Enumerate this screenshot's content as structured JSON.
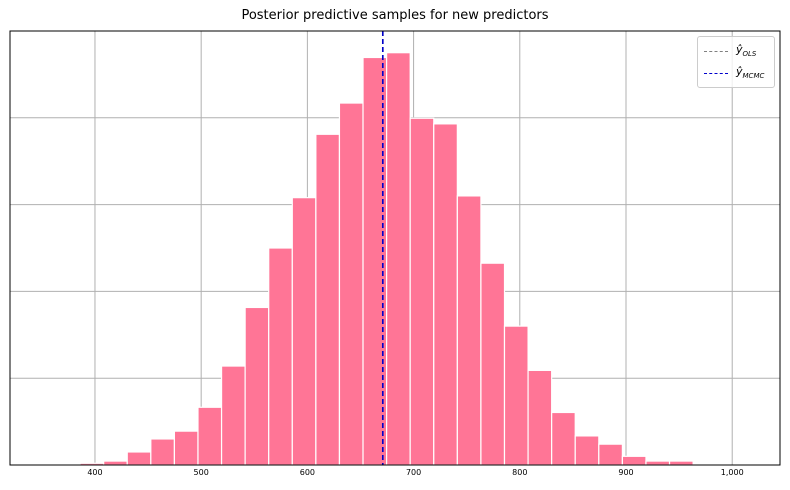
{
  "chart_data": {
    "type": "bar",
    "title": "Posterior predictive samples for new predictors",
    "xlabel": "",
    "ylabel": "",
    "xlim": [
      320,
      1045
    ],
    "ylim": [
      0,
      1
    ],
    "x_ticks": [
      400,
      500,
      600,
      700,
      800,
      900,
      1000
    ],
    "x_tick_labels": [
      "400",
      "500",
      "600",
      "700",
      "800",
      "900",
      "1,000"
    ],
    "y_tick_labels_shown": false,
    "grid": true,
    "legend_placement": "top-right",
    "bin_width": 22.2,
    "bin_edges_start": 386,
    "bins": [
      {
        "left": 386.0,
        "right": 408.2,
        "height": 0.004
      },
      {
        "left": 408.2,
        "right": 430.4,
        "height": 0.009
      },
      {
        "left": 430.4,
        "right": 452.6,
        "height": 0.03
      },
      {
        "left": 452.6,
        "right": 474.8,
        "height": 0.06
      },
      {
        "left": 474.8,
        "right": 497.0,
        "height": 0.078
      },
      {
        "left": 497.0,
        "right": 519.2,
        "height": 0.133
      },
      {
        "left": 519.2,
        "right": 541.4,
        "height": 0.228
      },
      {
        "left": 541.4,
        "right": 563.6,
        "height": 0.363
      },
      {
        "left": 563.6,
        "right": 585.8,
        "height": 0.5
      },
      {
        "left": 585.8,
        "right": 608.0,
        "height": 0.616
      },
      {
        "left": 608.0,
        "right": 630.2,
        "height": 0.762
      },
      {
        "left": 630.2,
        "right": 652.4,
        "height": 0.834
      },
      {
        "left": 652.4,
        "right": 674.6,
        "height": 0.939
      },
      {
        "left": 674.6,
        "right": 696.8,
        "height": 0.95
      },
      {
        "left": 696.8,
        "right": 719.0,
        "height": 0.799
      },
      {
        "left": 719.0,
        "right": 741.2,
        "height": 0.786
      },
      {
        "left": 741.2,
        "right": 763.4,
        "height": 0.62
      },
      {
        "left": 763.4,
        "right": 785.6,
        "height": 0.465
      },
      {
        "left": 785.6,
        "right": 807.8,
        "height": 0.32
      },
      {
        "left": 807.8,
        "right": 830.0,
        "height": 0.218
      },
      {
        "left": 830.0,
        "right": 852.2,
        "height": 0.121
      },
      {
        "left": 852.2,
        "right": 874.4,
        "height": 0.067
      },
      {
        "left": 874.4,
        "right": 896.6,
        "height": 0.048
      },
      {
        "left": 896.6,
        "right": 918.8,
        "height": 0.02
      },
      {
        "left": 918.8,
        "right": 941.0,
        "height": 0.009
      },
      {
        "left": 941.0,
        "right": 963.2,
        "height": 0.009
      }
    ],
    "bar_color": "#ff7596",
    "bar_edge_color": "#ffffff",
    "vlines": [
      {
        "name": "ŷ_OLS",
        "x": 671,
        "color": "#808080",
        "style": "dashed"
      },
      {
        "name": "ŷ_MCMC",
        "x": 671,
        "color": "#0000cc",
        "style": "dashed"
      }
    ]
  },
  "legend": {
    "ols": {
      "main": "ŷ",
      "sub": "OLS",
      "color": "#808080"
    },
    "mcmc": {
      "main": "ŷ",
      "sub": "MCMC",
      "color": "#0000cc"
    }
  }
}
